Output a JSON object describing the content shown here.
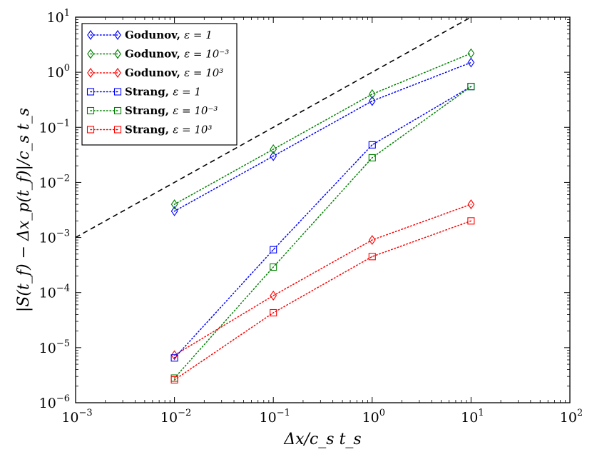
{
  "chart_data": {
    "type": "scatter",
    "xscale": "log",
    "yscale": "log",
    "xlim": [
      0.001,
      100
    ],
    "ylim": [
      1e-06,
      10
    ],
    "xlabel": "Δx/c_s t_s",
    "ylabel": "|S(t_f) − Δx_p(t_f)|/c_s t_s",
    "legend_position": "top-left",
    "xticks": [
      {
        "value": 0.001,
        "base": "10",
        "exp": "−3"
      },
      {
        "value": 0.01,
        "base": "10",
        "exp": "−2"
      },
      {
        "value": 0.1,
        "base": "10",
        "exp": "−1"
      },
      {
        "value": 1,
        "base": "10",
        "exp": "0"
      },
      {
        "value": 10,
        "base": "10",
        "exp": "1"
      },
      {
        "value": 100,
        "base": "10",
        "exp": "2"
      }
    ],
    "yticks": [
      {
        "value": 1e-06,
        "base": "10",
        "exp": "−6"
      },
      {
        "value": 1e-05,
        "base": "10",
        "exp": "−5"
      },
      {
        "value": 0.0001,
        "base": "10",
        "exp": "−4"
      },
      {
        "value": 0.001,
        "base": "10",
        "exp": "−3"
      },
      {
        "value": 0.01,
        "base": "10",
        "exp": "−2"
      },
      {
        "value": 0.1,
        "base": "10",
        "exp": "−1"
      },
      {
        "value": 1,
        "base": "10",
        "exp": "0"
      },
      {
        "value": 10,
        "base": "10",
        "exp": "1"
      }
    ],
    "reference_line": {
      "style": "dashed",
      "color": "#000000",
      "x": [
        0.001,
        10
      ],
      "y": [
        0.001,
        10
      ]
    },
    "series": [
      {
        "name": "Godunov, ε = 1",
        "label": "Godunov,",
        "eps": "ε = 1",
        "marker": "diamond",
        "color": "#0000ff",
        "x": [
          0.01,
          0.1,
          1,
          10
        ],
        "y": [
          0.003,
          0.03,
          0.3,
          1.5
        ]
      },
      {
        "name": "Godunov, ε = 10⁻³",
        "label": "Godunov,",
        "eps": "ε = 10⁻³",
        "marker": "diamond",
        "color": "#008000",
        "x": [
          0.01,
          0.1,
          1,
          10
        ],
        "y": [
          0.004,
          0.04,
          0.4,
          2.2
        ]
      },
      {
        "name": "Godunov, ε = 10³",
        "label": "Godunov,",
        "eps": "ε = 10³",
        "marker": "diamond",
        "color": "#ff0000",
        "x": [
          0.01,
          0.1,
          1,
          10
        ],
        "y": [
          7.3e-06,
          8.8e-05,
          0.0009,
          0.004
        ]
      },
      {
        "name": "Strang, ε = 1",
        "label": "Strang,",
        "eps": "ε = 1",
        "marker": "square",
        "color": "#0000ff",
        "x": [
          0.01,
          0.1,
          1,
          10
        ],
        "y": [
          6.5e-06,
          0.0006,
          0.048,
          0.55
        ]
      },
      {
        "name": "Strang, ε = 10⁻³",
        "label": "Strang,",
        "eps": "ε = 10⁻³",
        "marker": "square",
        "color": "#008000",
        "x": [
          0.01,
          0.1,
          1,
          10
        ],
        "y": [
          2.8e-06,
          0.00029,
          0.028,
          0.55
        ]
      },
      {
        "name": "Strang, ε = 10³",
        "label": "Strang,",
        "eps": "ε = 10³",
        "marker": "square",
        "color": "#ff0000",
        "x": [
          0.01,
          0.1,
          1,
          10
        ],
        "y": [
          2.6e-06,
          4.3e-05,
          0.00045,
          0.002
        ]
      }
    ]
  }
}
